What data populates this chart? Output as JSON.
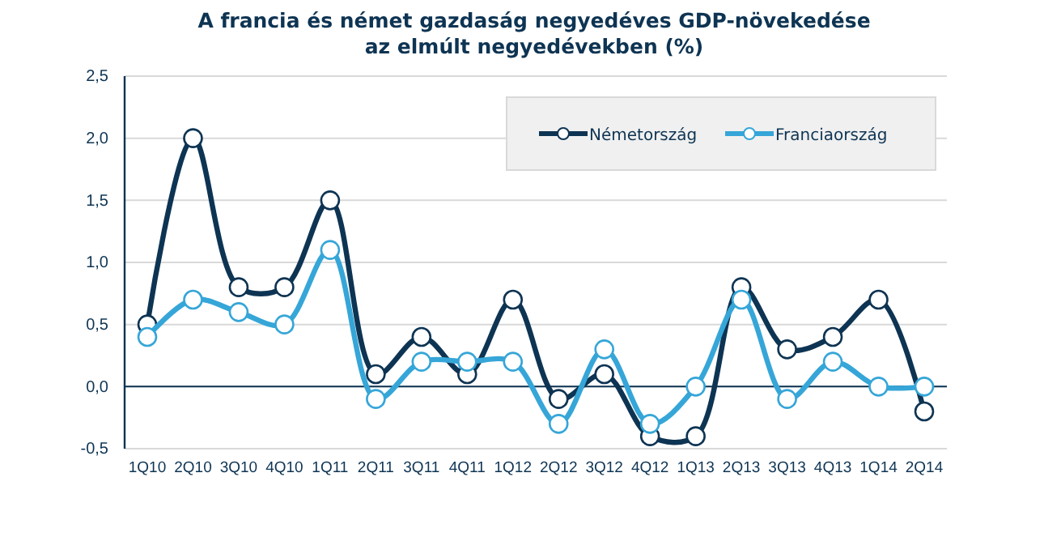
{
  "chart_data": {
    "type": "line",
    "title": "A francia és német gazdaság negyedéves GDP-növekedése\naz elmúlt negyedévekben  (%)",
    "categories": [
      "1Q10",
      "2Q10",
      "3Q10",
      "4Q10",
      "1Q11",
      "2Q11",
      "3Q11",
      "4Q11",
      "1Q12",
      "2Q12",
      "3Q12",
      "4Q12",
      "1Q13",
      "2Q13",
      "3Q13",
      "4Q13",
      "1Q14",
      "2Q14"
    ],
    "series": [
      {
        "name": "Németország",
        "color": "#0e3453",
        "values": [
          0.5,
          2.0,
          0.8,
          0.8,
          1.5,
          0.1,
          0.4,
          0.1,
          0.7,
          -0.1,
          0.1,
          -0.4,
          -0.4,
          0.8,
          0.3,
          0.4,
          0.7,
          -0.2
        ]
      },
      {
        "name": "Franciaország",
        "color": "#36a6d8",
        "values": [
          0.4,
          0.7,
          0.6,
          0.5,
          1.1,
          -0.1,
          0.2,
          0.2,
          0.2,
          -0.3,
          0.3,
          -0.3,
          0.0,
          0.7,
          -0.1,
          0.2,
          0.0,
          0.0
        ]
      }
    ],
    "ylim": [
      -0.5,
      2.5
    ],
    "yticks": [
      {
        "value": -0.5,
        "label": "-0,5"
      },
      {
        "value": 0,
        "label": "0,0"
      },
      {
        "value": 0.5,
        "label": "0,5"
      },
      {
        "value": 1,
        "label": "1,0"
      },
      {
        "value": 1.5,
        "label": "1,5"
      },
      {
        "value": 2,
        "label": "2,0"
      },
      {
        "value": 2.5,
        "label": "2,5"
      }
    ],
    "ref_lines": [
      {
        "axis": "y",
        "value": 0,
        "color": "#0e3453"
      }
    ],
    "grid": "y",
    "legend": "top right",
    "marker": "circle",
    "line_style": "solid"
  }
}
